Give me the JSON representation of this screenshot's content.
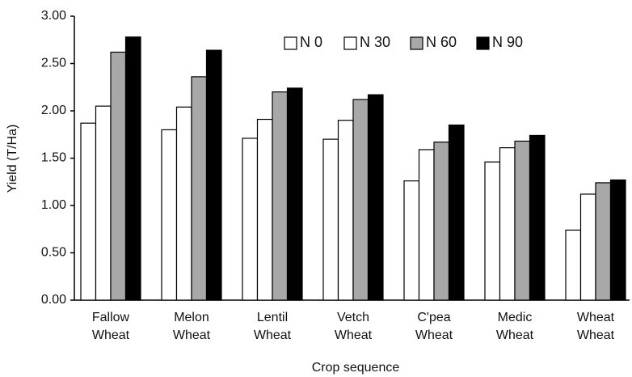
{
  "chart_data": {
    "type": "bar",
    "y_label": "Yield (T/Ha)",
    "x_label": "Crop sequence",
    "categories": [
      "Fallow\nWheat",
      "Melon\nWheat",
      "Lentil\nWheat",
      "Vetch\nWheat",
      "C'pea\nWheat",
      "Medic\nWheat",
      "Wheat\nWheat"
    ],
    "series": [
      {
        "name": "N 0",
        "color": "#ffffff",
        "values": [
          1.87,
          1.8,
          1.71,
          1.7,
          1.26,
          1.46,
          0.74
        ]
      },
      {
        "name": "N 30",
        "color": "#ffffff",
        "values": [
          2.05,
          2.04,
          1.91,
          1.9,
          1.59,
          1.61,
          1.12
        ]
      },
      {
        "name": "N 60",
        "color": "#a8a8a8",
        "values": [
          2.62,
          2.36,
          2.2,
          2.12,
          1.67,
          1.68,
          1.24
        ]
      },
      {
        "name": "N 90",
        "color": "#000000",
        "values": [
          2.78,
          2.64,
          2.24,
          2.17,
          1.85,
          1.74,
          1.27
        ]
      }
    ],
    "ylim": [
      0,
      3
    ],
    "yticks": [
      {
        "value": 0,
        "label": "0.00"
      },
      {
        "value": 0.5,
        "label": "0.50"
      },
      {
        "value": 1,
        "label": "1.00"
      },
      {
        "value": 1.5,
        "label": "1.50"
      },
      {
        "value": 2,
        "label": "2.00"
      },
      {
        "value": 2.5,
        "label": "2.50"
      },
      {
        "value": 3,
        "label": "3.00"
      }
    ],
    "legend": "top-right"
  }
}
